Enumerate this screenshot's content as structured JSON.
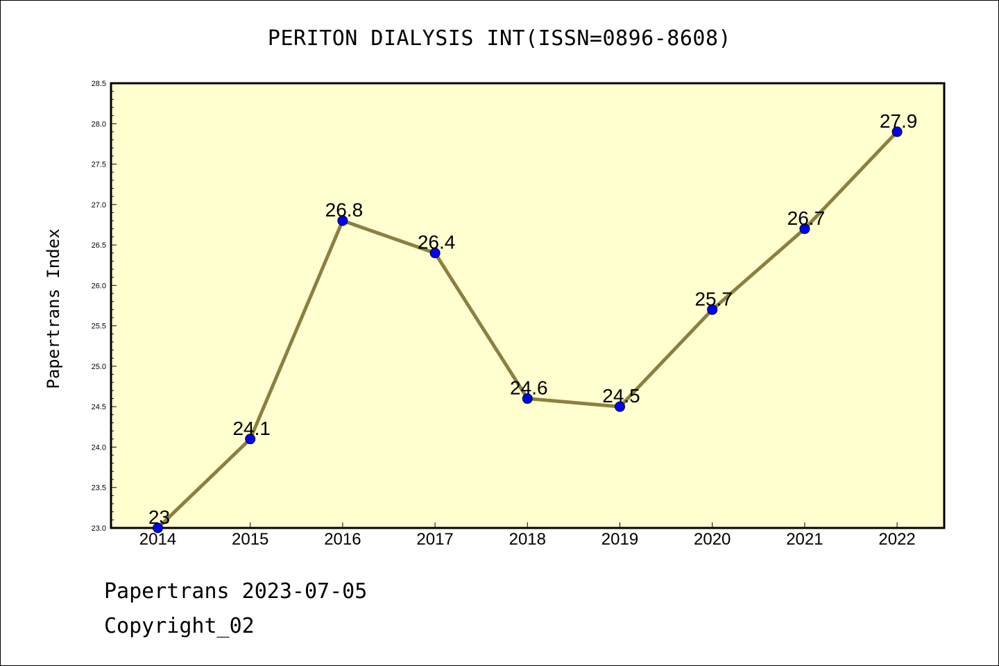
{
  "chart_data": {
    "type": "line",
    "title": "PERITON DIALYSIS INT(ISSN=0896-8608)",
    "ylabel": "Papertrans Index",
    "xlabel": "",
    "categories": [
      "2014",
      "2015",
      "2016",
      "2017",
      "2018",
      "2019",
      "2020",
      "2021",
      "2022"
    ],
    "series": [
      {
        "values": [
          23.0,
          24.1,
          26.8,
          26.4,
          24.6,
          24.5,
          25.7,
          26.7,
          27.9
        ]
      }
    ],
    "data_labels": [
      "23",
      "24.1",
      "26.8",
      "26.4",
      "24.6",
      "24.5",
      "25.7",
      "26.7",
      "27.9"
    ],
    "ylim": [
      23.0,
      28.5
    ],
    "yticks": [
      "23.0",
      "23.5",
      "24.0",
      "24.5",
      "25.0",
      "25.5",
      "26.0",
      "26.5",
      "27.0",
      "27.5",
      "28.0",
      "28.5"
    ],
    "grid": false,
    "colors": {
      "plot_background": "#ffffd0",
      "line": "#8b8040",
      "marker": "#0000ff"
    }
  },
  "footer": {
    "line1": "Papertrans 2023-07-05",
    "line2": "Copyright_02"
  }
}
